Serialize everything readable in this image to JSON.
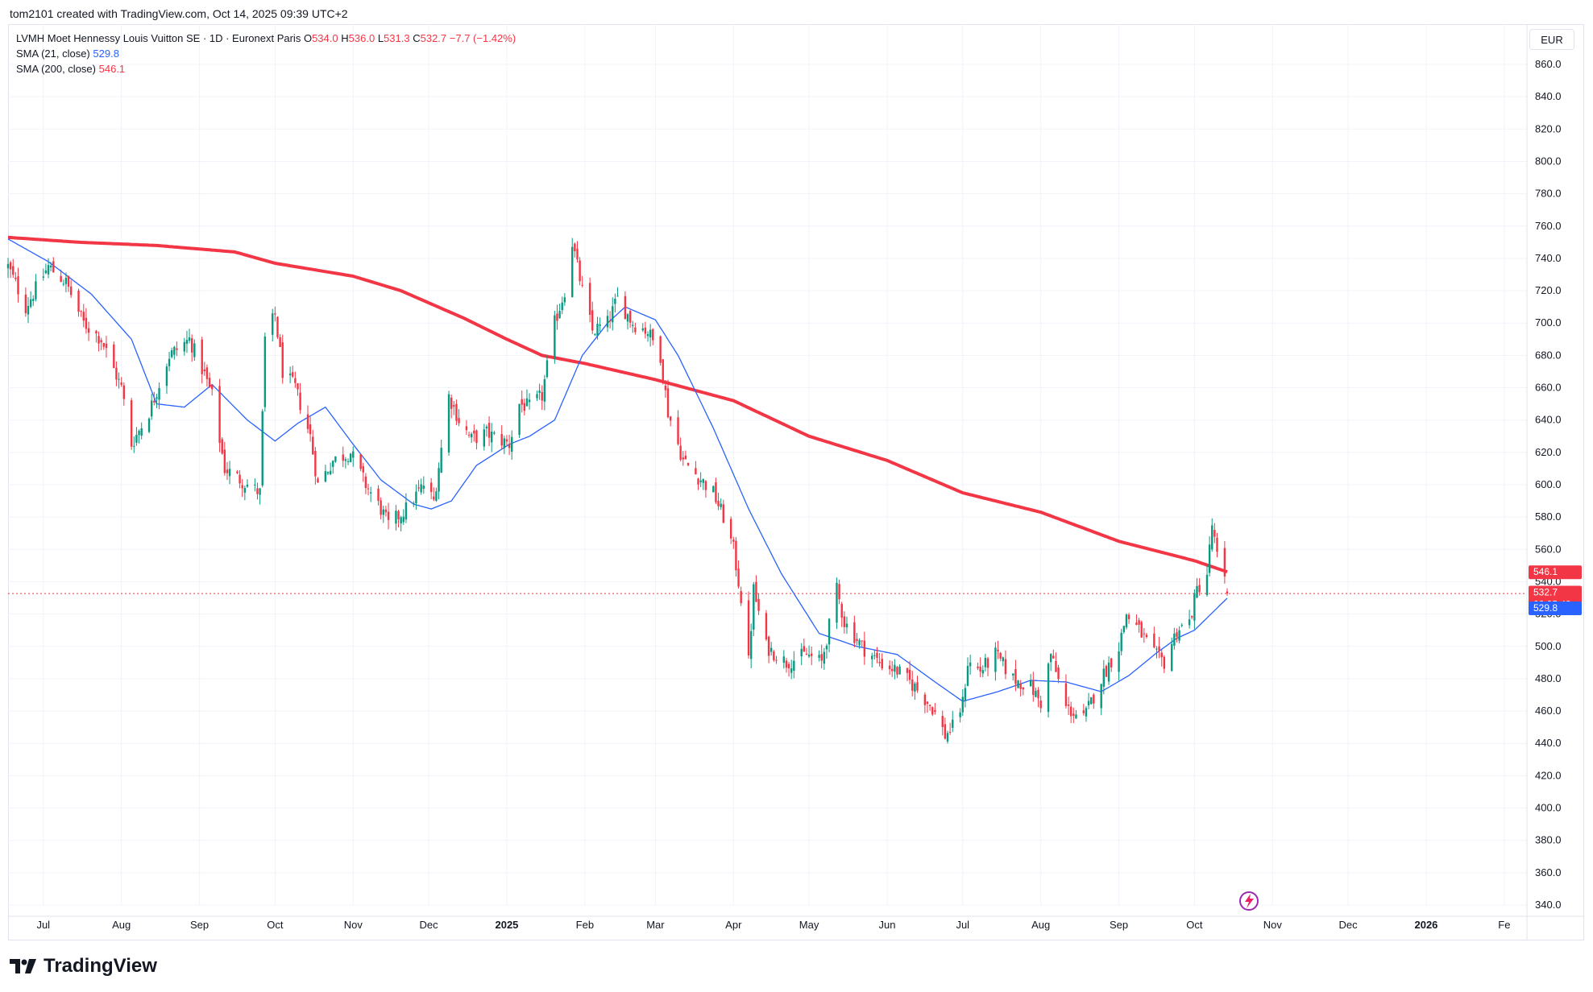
{
  "header": {
    "text": "tom2101 created with TradingView.com, Oct 14, 2025 09:39 UTC+2"
  },
  "legend": {
    "symbol": "LVMH Moet Hennessy Louis Vuitton SE · 1D · Euronext Paris",
    "o_label": "O",
    "o_value": "534.0",
    "h_label": "H",
    "h_value": "536.0",
    "l_label": "L",
    "l_value": "531.3",
    "c_label": "C",
    "c_value": "532.7",
    "change": "−7.7 (−1.42%)",
    "sma21_label": "SMA (21, close)",
    "sma21_value": "529.8",
    "sma200_label": "SMA (200, close)",
    "sma200_value": "546.1"
  },
  "currency": "EUR",
  "brand": {
    "name": "TradingView",
    "logo_icon": "tradingview-logo-icon"
  },
  "colors": {
    "up": "#089981",
    "down": "#f23645",
    "sma21": "#2962ff",
    "sma200": "#f23645",
    "grid": "#f0f3fa",
    "last_price_line": "#f23645"
  },
  "chart_data": {
    "type": "candlestick",
    "symbol": "LVMH",
    "interval": "1D",
    "ylim": [
      330,
      870
    ],
    "y_ticks": [
      340,
      360,
      380,
      400,
      420,
      440,
      460,
      480,
      500,
      520,
      540,
      560,
      580,
      600,
      620,
      640,
      660,
      680,
      700,
      720,
      740,
      760,
      780,
      800,
      820,
      840,
      860
    ],
    "y_tick_labels": [
      "340.0",
      "360.0",
      "380.0",
      "400.0",
      "420.0",
      "440.0",
      "460.0",
      "480.0",
      "500.0",
      "520.0",
      "540.0",
      "560.0",
      "580.0",
      "600.0",
      "620.0",
      "640.0",
      "660.0",
      "680.0",
      "700.0",
      "720.0",
      "740.0",
      "760.0",
      "780.0",
      "800.0",
      "820.0",
      "840.0",
      "860.0"
    ],
    "xlim": [
      "2024-06-17",
      "2026-02-10"
    ],
    "x_ticks": [
      {
        "date": "2024-07-01",
        "label": "Jul"
      },
      {
        "date": "2024-08-01",
        "label": "Aug"
      },
      {
        "date": "2024-09-01",
        "label": "Sep"
      },
      {
        "date": "2024-10-01",
        "label": "Oct"
      },
      {
        "date": "2024-11-01",
        "label": "Nov"
      },
      {
        "date": "2024-12-01",
        "label": "Dec"
      },
      {
        "date": "2025-01-01",
        "label": "2025",
        "year": true
      },
      {
        "date": "2025-02-01",
        "label": "Feb"
      },
      {
        "date": "2025-03-01",
        "label": "Mar"
      },
      {
        "date": "2025-04-01",
        "label": "Apr"
      },
      {
        "date": "2025-05-01",
        "label": "May"
      },
      {
        "date": "2025-06-01",
        "label": "Jun"
      },
      {
        "date": "2025-07-01",
        "label": "Jul"
      },
      {
        "date": "2025-08-01",
        "label": "Aug"
      },
      {
        "date": "2025-09-01",
        "label": "Sep"
      },
      {
        "date": "2025-10-01",
        "label": "Oct"
      },
      {
        "date": "2025-11-01",
        "label": "Nov"
      },
      {
        "date": "2025-12-01",
        "label": "Dec"
      },
      {
        "date": "2026-01-01",
        "label": "2026",
        "year": true
      },
      {
        "date": "2026-02-01",
        "label": "Fe"
      }
    ],
    "close_anchors": [
      [
        "2024-06-17",
        735
      ],
      [
        "2024-06-24",
        710
      ],
      [
        "2024-07-03",
        735
      ],
      [
        "2024-07-10",
        725
      ],
      [
        "2024-07-17",
        700
      ],
      [
        "2024-07-24",
        690
      ],
      [
        "2024-08-01",
        660
      ],
      [
        "2024-08-05",
        625
      ],
      [
        "2024-08-12",
        645
      ],
      [
        "2024-08-20",
        680
      ],
      [
        "2024-08-28",
        690
      ],
      [
        "2024-09-03",
        668
      ],
      [
        "2024-09-06",
        655
      ],
      [
        "2024-09-11",
        610
      ],
      [
        "2024-09-20",
        600
      ],
      [
        "2024-09-25",
        595
      ],
      [
        "2024-09-27",
        690
      ],
      [
        "2024-10-01",
        705
      ],
      [
        "2024-10-04",
        670
      ],
      [
        "2024-10-09",
        660
      ],
      [
        "2024-10-15",
        630
      ],
      [
        "2024-10-18",
        600
      ],
      [
        "2024-10-24",
        615
      ],
      [
        "2024-10-31",
        620
      ],
      [
        "2024-11-06",
        600
      ],
      [
        "2024-11-12",
        585
      ],
      [
        "2024-11-15",
        575
      ],
      [
        "2024-11-22",
        585
      ],
      [
        "2024-11-29",
        600
      ],
      [
        "2024-12-03",
        590
      ],
      [
        "2024-12-09",
        655
      ],
      [
        "2024-12-13",
        640
      ],
      [
        "2024-12-18",
        628
      ],
      [
        "2024-12-24",
        632
      ],
      [
        "2025-01-02",
        625
      ],
      [
        "2025-01-06",
        650
      ],
      [
        "2025-01-10",
        648
      ],
      [
        "2025-01-15",
        655
      ],
      [
        "2025-01-20",
        700
      ],
      [
        "2025-01-24",
        720
      ],
      [
        "2025-01-27",
        750
      ],
      [
        "2025-01-29",
        735
      ],
      [
        "2025-01-31",
        720
      ],
      [
        "2025-02-04",
        695
      ],
      [
        "2025-02-10",
        700
      ],
      [
        "2025-02-14",
        715
      ],
      [
        "2025-02-20",
        700
      ],
      [
        "2025-02-26",
        695
      ],
      [
        "2025-03-03",
        680
      ],
      [
        "2025-03-06",
        645
      ],
      [
        "2025-03-12",
        615
      ],
      [
        "2025-03-18",
        605
      ],
      [
        "2025-03-24",
        595
      ],
      [
        "2025-03-28",
        580
      ],
      [
        "2025-04-01",
        560
      ],
      [
        "2025-04-04",
        530
      ],
      [
        "2025-04-07",
        490
      ],
      [
        "2025-04-09",
        535
      ],
      [
        "2025-04-14",
        500
      ],
      [
        "2025-04-22",
        490
      ],
      [
        "2025-04-30",
        495
      ],
      [
        "2025-05-06",
        490
      ],
      [
        "2025-05-12",
        535
      ],
      [
        "2025-05-15",
        515
      ],
      [
        "2025-05-22",
        500
      ],
      [
        "2025-05-29",
        490
      ],
      [
        "2025-06-05",
        485
      ],
      [
        "2025-06-12",
        475
      ],
      [
        "2025-06-19",
        462
      ],
      [
        "2025-06-24",
        445
      ],
      [
        "2025-06-27",
        450
      ],
      [
        "2025-07-01",
        465
      ],
      [
        "2025-07-03",
        490
      ],
      [
        "2025-07-08",
        485
      ],
      [
        "2025-07-14",
        495
      ],
      [
        "2025-07-21",
        480
      ],
      [
        "2025-07-28",
        475
      ],
      [
        "2025-08-01",
        465
      ],
      [
        "2025-08-05",
        495
      ],
      [
        "2025-08-11",
        462
      ],
      [
        "2025-08-18",
        455
      ],
      [
        "2025-08-25",
        480
      ],
      [
        "2025-09-01",
        500
      ],
      [
        "2025-09-04",
        520
      ],
      [
        "2025-09-09",
        510
      ],
      [
        "2025-09-15",
        495
      ],
      [
        "2025-09-19",
        490
      ],
      [
        "2025-09-24",
        510
      ],
      [
        "2025-09-29",
        515
      ],
      [
        "2025-10-02",
        535
      ],
      [
        "2025-10-06",
        545
      ],
      [
        "2025-10-08",
        575
      ],
      [
        "2025-10-10",
        555
      ],
      [
        "2025-10-13",
        540
      ],
      [
        "2025-10-14",
        532.7
      ]
    ],
    "sma200_anchors": [
      [
        "2024-06-17",
        753
      ],
      [
        "2024-07-15",
        750
      ],
      [
        "2024-08-15",
        748
      ],
      [
        "2024-09-15",
        744
      ],
      [
        "2024-10-01",
        737
      ],
      [
        "2024-11-01",
        729
      ],
      [
        "2024-11-20",
        720
      ],
      [
        "2024-12-15",
        703
      ],
      [
        "2025-01-01",
        690
      ],
      [
        "2025-01-15",
        680
      ],
      [
        "2025-02-01",
        675
      ],
      [
        "2025-03-01",
        665
      ],
      [
        "2025-04-01",
        652
      ],
      [
        "2025-05-01",
        630
      ],
      [
        "2025-06-01",
        615
      ],
      [
        "2025-07-01",
        595
      ],
      [
        "2025-08-01",
        583
      ],
      [
        "2025-09-01",
        565
      ],
      [
        "2025-10-01",
        553
      ],
      [
        "2025-10-14",
        546.1
      ]
    ],
    "sma21_anchors": [
      [
        "2024-06-17",
        752
      ],
      [
        "2024-07-03",
        738
      ],
      [
        "2024-07-20",
        718
      ],
      [
        "2024-08-05",
        690
      ],
      [
        "2024-08-15",
        650
      ],
      [
        "2024-08-26",
        648
      ],
      [
        "2024-09-06",
        662
      ],
      [
        "2024-09-20",
        640
      ],
      [
        "2024-10-01",
        627
      ],
      [
        "2024-10-10",
        638
      ],
      [
        "2024-10-21",
        648
      ],
      [
        "2024-11-01",
        625
      ],
      [
        "2024-11-12",
        603
      ],
      [
        "2024-11-25",
        588
      ],
      [
        "2024-12-02",
        585
      ],
      [
        "2024-12-10",
        590
      ],
      [
        "2024-12-20",
        612
      ],
      [
        "2025-01-02",
        625
      ],
      [
        "2025-01-10",
        630
      ],
      [
        "2025-01-20",
        640
      ],
      [
        "2025-01-31",
        680
      ],
      [
        "2025-02-10",
        700
      ],
      [
        "2025-02-17",
        710
      ],
      [
        "2025-03-01",
        702
      ],
      [
        "2025-03-10",
        680
      ],
      [
        "2025-03-24",
        635
      ],
      [
        "2025-04-07",
        585
      ],
      [
        "2025-04-20",
        545
      ],
      [
        "2025-05-05",
        508
      ],
      [
        "2025-05-20",
        500
      ],
      [
        "2025-06-05",
        495
      ],
      [
        "2025-06-20",
        478
      ],
      [
        "2025-07-01",
        466
      ],
      [
        "2025-07-15",
        472
      ],
      [
        "2025-07-28",
        479
      ],
      [
        "2025-08-11",
        478
      ],
      [
        "2025-08-25",
        472
      ],
      [
        "2025-09-05",
        482
      ],
      [
        "2025-09-16",
        496
      ],
      [
        "2025-09-24",
        505
      ],
      [
        "2025-10-01",
        510
      ],
      [
        "2025-10-14",
        529.8
      ]
    ],
    "last_price": "532.7",
    "countdown": "08:05:49",
    "sma200_last": "546.1",
    "sma21_last": "529.8"
  }
}
